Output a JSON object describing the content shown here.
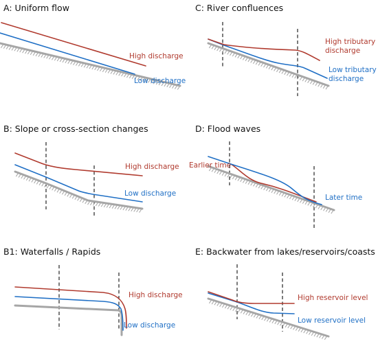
{
  "colors": {
    "high": "#b03a2e",
    "low": "#1f6fc5",
    "bed": "#a6a6a6",
    "dash": "#222222"
  },
  "panels": {
    "a": {
      "title": "A: Uniform flow",
      "high": "High discharge",
      "low": "Low discharge"
    },
    "b": {
      "title": "B: Slope or cross-section changes",
      "high": "High discharge",
      "low": "Low discharge"
    },
    "b1": {
      "title": "B1: Waterfalls / Rapids",
      "high": "High discharge",
      "low": "Low discharge"
    },
    "c": {
      "title": "C: River confluences",
      "high1": "High tributary",
      "high2": "discharge",
      "low1": "Low tributary",
      "low2": "discharge"
    },
    "d": {
      "title": "D: Flood waves",
      "earlier": "Earlier time",
      "later": "Later time"
    },
    "e": {
      "title": "E: Backwater from lakes/reservoirs/coasts",
      "high": "High reservoir level",
      "low": "Low reservoir level"
    }
  }
}
